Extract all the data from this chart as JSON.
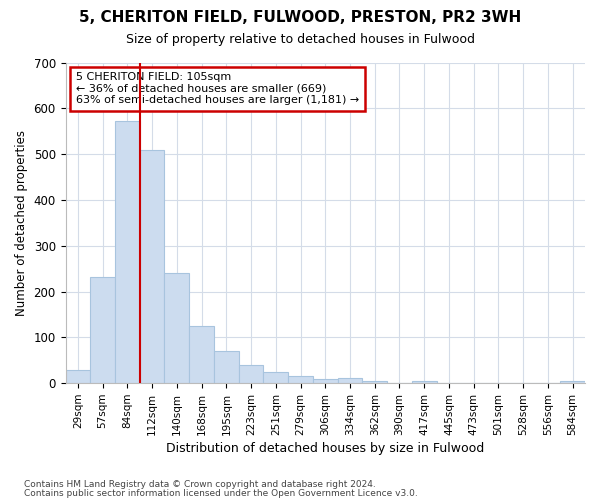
{
  "title1": "5, CHERITON FIELD, FULWOOD, PRESTON, PR2 3WH",
  "title2": "Size of property relative to detached houses in Fulwood",
  "xlabel": "Distribution of detached houses by size in Fulwood",
  "ylabel": "Number of detached properties",
  "categories": [
    "29sqm",
    "57sqm",
    "84sqm",
    "112sqm",
    "140sqm",
    "168sqm",
    "195sqm",
    "223sqm",
    "251sqm",
    "279sqm",
    "306sqm",
    "334sqm",
    "362sqm",
    "390sqm",
    "417sqm",
    "445sqm",
    "473sqm",
    "501sqm",
    "528sqm",
    "556sqm",
    "584sqm"
  ],
  "values": [
    28,
    232,
    572,
    510,
    240,
    125,
    70,
    40,
    25,
    15,
    10,
    12,
    5,
    0,
    5,
    0,
    0,
    0,
    0,
    0,
    5
  ],
  "bar_color": "#ccdcef",
  "bar_edge_color": "#a8c4de",
  "grid_color": "#d4dce8",
  "vline_color": "#cc0000",
  "vline_x_idx": 3,
  "annotation_text": "5 CHERITON FIELD: 105sqm\n← 36% of detached houses are smaller (669)\n63% of semi-detached houses are larger (1,181) →",
  "annotation_box_color": "#ffffff",
  "annotation_box_edge": "#cc0000",
  "ylim": [
    0,
    700
  ],
  "yticks": [
    0,
    100,
    200,
    300,
    400,
    500,
    600,
    700
  ],
  "footer1": "Contains HM Land Registry data © Crown copyright and database right 2024.",
  "footer2": "Contains public sector information licensed under the Open Government Licence v3.0.",
  "bg_color": "#ffffff"
}
